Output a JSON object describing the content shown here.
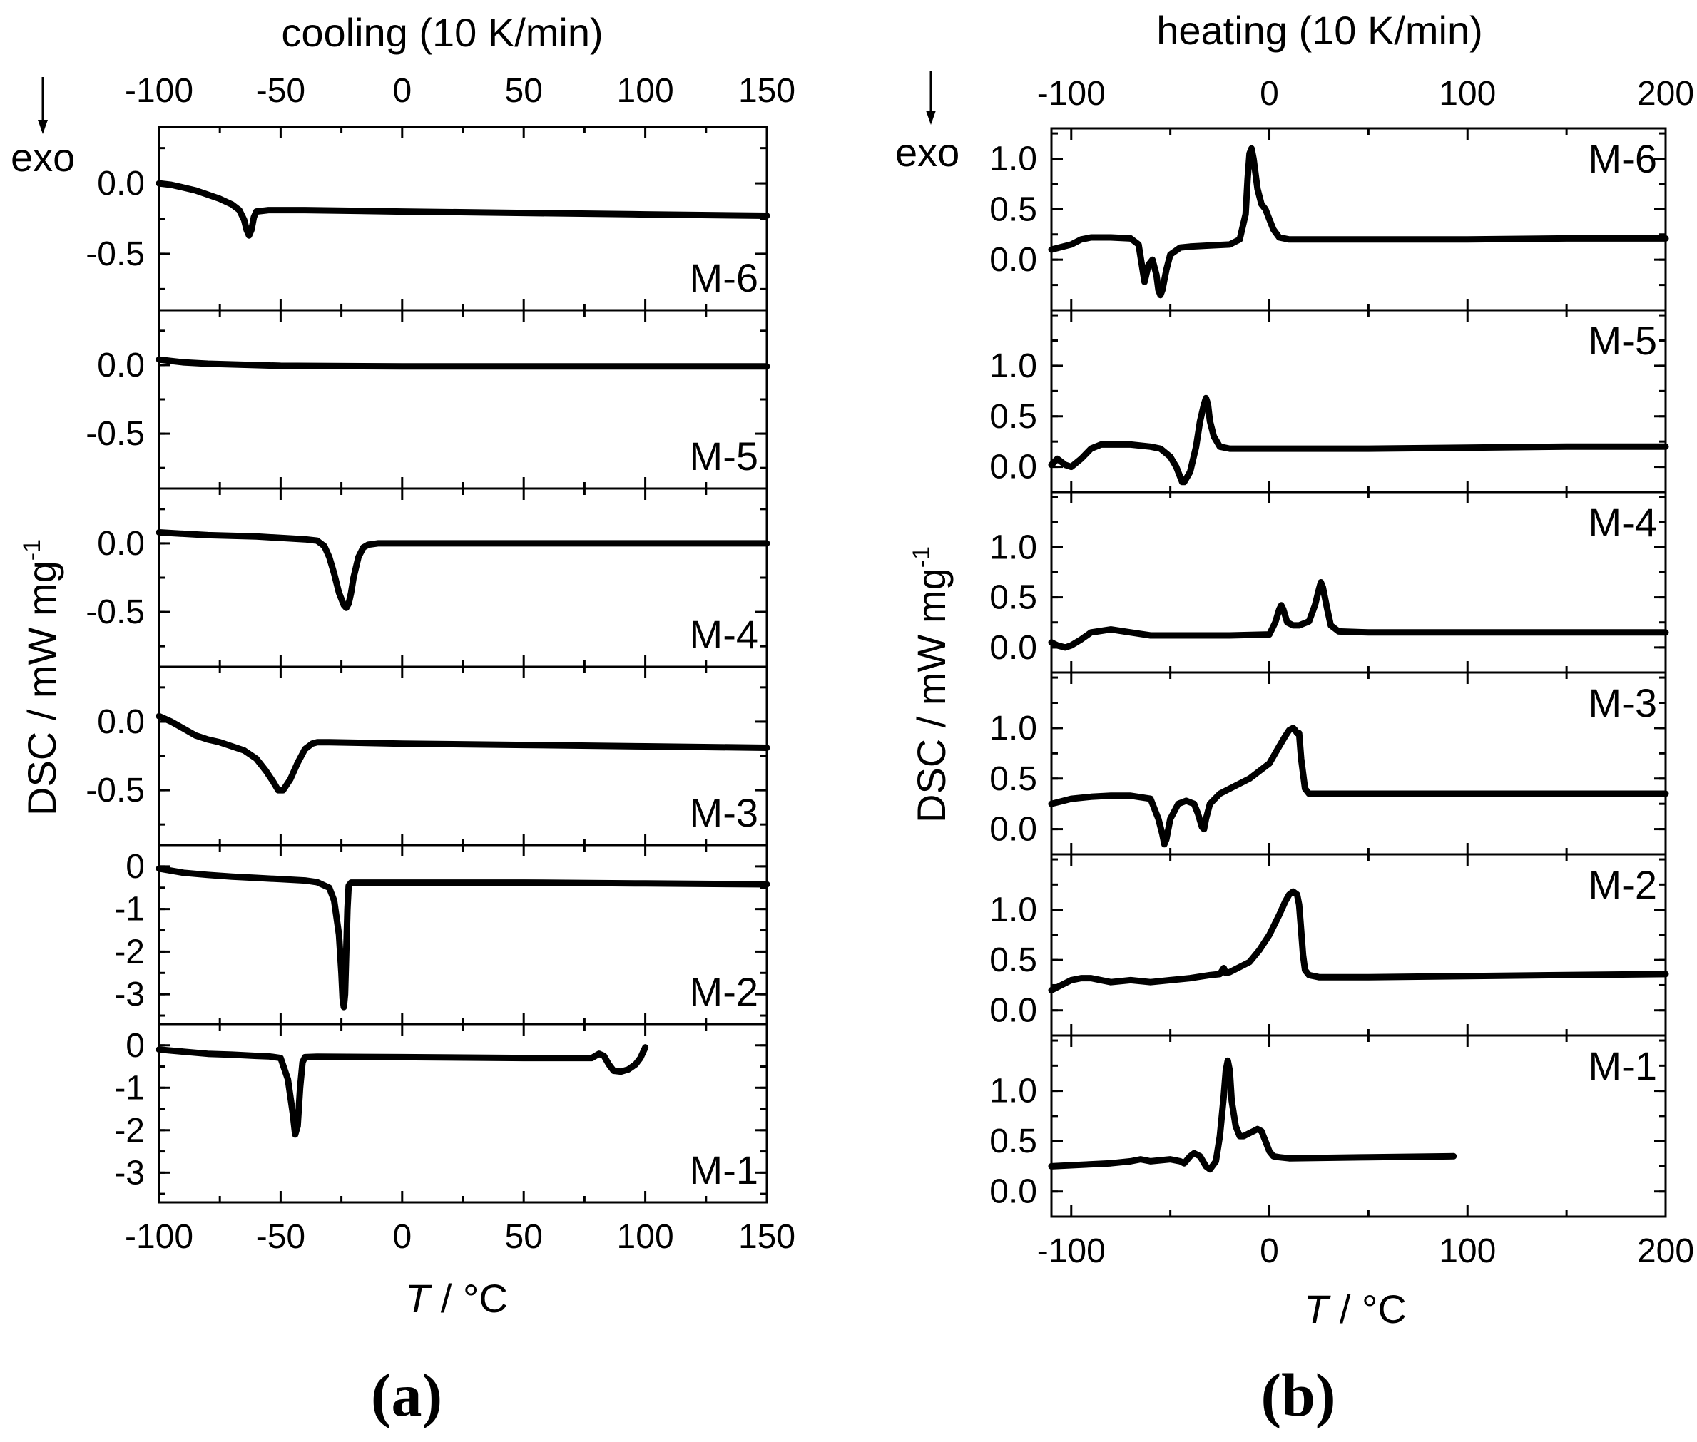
{
  "chart_data": [
    {
      "id": "a",
      "type": "line",
      "figure_label": "(a)",
      "title": "cooling (10 K/min)",
      "xlabel": "T / °C",
      "xlabel_italic": "T",
      "xlabel_rest": " / °C",
      "ylabel": "DSC / mW mg-1",
      "ylabel_main": "DSC / mW mg",
      "ylabel_sup": "-1",
      "exo_label": "exo",
      "xlim": [
        -100,
        150
      ],
      "xticks": [
        -100,
        -50,
        0,
        50,
        100,
        150
      ],
      "series": [
        {
          "name": "M-6",
          "ylim": [
            -0.9,
            0.4
          ],
          "yticks": [
            0.0,
            -0.5
          ],
          "ytick_labels": [
            "0.0",
            "-0.5"
          ],
          "x": [
            -100,
            -95,
            -90,
            -85,
            -80,
            -75,
            -70,
            -67,
            -65,
            -64,
            -63,
            -62,
            -61,
            -60,
            -55,
            -40,
            0,
            50,
            100,
            150
          ],
          "y": [
            0.0,
            -0.01,
            -0.03,
            -0.05,
            -0.08,
            -0.11,
            -0.15,
            -0.19,
            -0.26,
            -0.33,
            -0.37,
            -0.33,
            -0.24,
            -0.2,
            -0.19,
            -0.19,
            -0.2,
            -0.21,
            -0.22,
            -0.23
          ]
        },
        {
          "name": "M-5",
          "ylim": [
            -0.9,
            0.4
          ],
          "yticks": [
            0.0,
            -0.5
          ],
          "ytick_labels": [
            "0.0",
            "-0.5"
          ],
          "x": [
            -100,
            -95,
            -90,
            -80,
            -50,
            0,
            50,
            100,
            150
          ],
          "y": [
            0.04,
            0.03,
            0.02,
            0.01,
            -0.005,
            -0.01,
            -0.01,
            -0.01,
            -0.01
          ]
        },
        {
          "name": "M-4",
          "ylim": [
            -0.9,
            0.4
          ],
          "yticks": [
            0.0,
            -0.5
          ],
          "ytick_labels": [
            "0.0",
            "-0.5"
          ],
          "x": [
            -100,
            -80,
            -60,
            -40,
            -35,
            -32,
            -30,
            -28,
            -26,
            -24,
            -23,
            -22,
            -21,
            -20,
            -18,
            -16,
            -14,
            -10,
            0,
            50,
            100,
            150
          ],
          "y": [
            0.08,
            0.06,
            0.05,
            0.03,
            0.02,
            -0.02,
            -0.1,
            -0.22,
            -0.36,
            -0.45,
            -0.47,
            -0.44,
            -0.36,
            -0.25,
            -0.1,
            -0.03,
            -0.01,
            0.0,
            0.0,
            0.0,
            0.0,
            0.0
          ]
        },
        {
          "name": "M-3",
          "ylim": [
            -0.9,
            0.4
          ],
          "yticks": [
            0.0,
            -0.5
          ],
          "ytick_labels": [
            "0.0",
            "-0.5"
          ],
          "x": [
            -100,
            -95,
            -90,
            -85,
            -80,
            -75,
            -70,
            -65,
            -60,
            -56,
            -53,
            -51,
            -49,
            -46,
            -43,
            -40,
            -37,
            -35,
            -30,
            0,
            50,
            100,
            150
          ],
          "y": [
            0.04,
            0.0,
            -0.05,
            -0.1,
            -0.13,
            -0.15,
            -0.18,
            -0.21,
            -0.27,
            -0.36,
            -0.44,
            -0.5,
            -0.5,
            -0.42,
            -0.3,
            -0.2,
            -0.16,
            -0.15,
            -0.15,
            -0.16,
            -0.17,
            -0.18,
            -0.19
          ]
        },
        {
          "name": "M-2",
          "ylim": [
            -3.7,
            0.5
          ],
          "yticks": [
            0,
            -1,
            -2,
            -3
          ],
          "ytick_labels": [
            "0",
            "-1",
            "-2",
            "-3"
          ],
          "x": [
            -100,
            -90,
            -80,
            -70,
            -60,
            -50,
            -40,
            -35,
            -30,
            -28,
            -26,
            -25,
            -24.5,
            -24,
            -23.5,
            -23,
            -22.5,
            -22,
            -21,
            -20,
            0,
            50,
            100,
            150
          ],
          "y": [
            -0.05,
            -0.15,
            -0.2,
            -0.24,
            -0.27,
            -0.3,
            -0.33,
            -0.37,
            -0.5,
            -0.8,
            -1.6,
            -2.5,
            -3.1,
            -3.3,
            -3.0,
            -2.0,
            -1.0,
            -0.45,
            -0.38,
            -0.38,
            -0.38,
            -0.38,
            -0.4,
            -0.42
          ]
        },
        {
          "name": "M-1",
          "ylim": [
            -3.7,
            0.5
          ],
          "yticks": [
            0,
            -1,
            -2,
            -3
          ],
          "ytick_labels": [
            "0",
            "-1",
            "-2",
            "-3"
          ],
          "x": [
            -100,
            -90,
            -80,
            -70,
            -60,
            -55,
            -50,
            -47,
            -45,
            -44,
            -43,
            -42,
            -41,
            -40,
            -35,
            0,
            50,
            78,
            81,
            83,
            85,
            87,
            90,
            93,
            96,
            98,
            100
          ],
          "y": [
            -0.1,
            -0.15,
            -0.2,
            -0.22,
            -0.25,
            -0.26,
            -0.3,
            -0.8,
            -1.6,
            -2.1,
            -1.9,
            -1.0,
            -0.4,
            -0.28,
            -0.27,
            -0.28,
            -0.3,
            -0.3,
            -0.2,
            -0.25,
            -0.45,
            -0.6,
            -0.62,
            -0.57,
            -0.45,
            -0.3,
            -0.05
          ]
        }
      ]
    },
    {
      "id": "b",
      "type": "line",
      "figure_label": "(b)",
      "title": "heating (10 K/min)",
      "xlabel": "T / °C",
      "xlabel_italic": "T",
      "xlabel_rest": " / °C",
      "ylabel": "DSC / mW mg-1",
      "ylabel_main": "DSC / mW mg",
      "ylabel_sup": "-1",
      "exo_label": "exo",
      "xlim": [
        -110,
        200
      ],
      "xticks": [
        -100,
        0,
        100,
        200
      ],
      "series": [
        {
          "name": "M-6",
          "ylim": [
            -0.5,
            1.3
          ],
          "yticks": [
            0.0,
            0.5,
            1.0
          ],
          "ytick_labels": [
            "0.0",
            "0.5",
            "1.0"
          ],
          "x": [
            -110,
            -100,
            -95,
            -90,
            -80,
            -70,
            -66,
            -64,
            -63,
            -61,
            -59,
            -57,
            -56,
            -55,
            -54,
            -52,
            -50,
            -45,
            -40,
            -30,
            -20,
            -15,
            -12,
            -11,
            -10,
            -9,
            -8,
            -6,
            -4,
            -2,
            0,
            2,
            5,
            10,
            50,
            100,
            150,
            200
          ],
          "y": [
            0.1,
            0.15,
            0.2,
            0.22,
            0.22,
            0.21,
            0.15,
            -0.1,
            -0.22,
            -0.05,
            0.0,
            -0.15,
            -0.3,
            -0.35,
            -0.3,
            -0.1,
            0.05,
            0.12,
            0.13,
            0.14,
            0.15,
            0.2,
            0.45,
            0.8,
            1.05,
            1.1,
            1.0,
            0.7,
            0.55,
            0.5,
            0.4,
            0.3,
            0.22,
            0.2,
            0.2,
            0.2,
            0.21,
            0.21
          ]
        },
        {
          "name": "M-5",
          "ylim": [
            -0.25,
            1.55
          ],
          "yticks": [
            0.0,
            0.5,
            1.0
          ],
          "ytick_labels": [
            "0.0",
            "0.5",
            "1.0"
          ],
          "x": [
            -110,
            -107,
            -103,
            -100,
            -95,
            -90,
            -85,
            -70,
            -60,
            -55,
            -50,
            -47,
            -45,
            -44,
            -43,
            -40,
            -37,
            -35,
            -33,
            -32,
            -31,
            -30,
            -28,
            -25,
            -20,
            0,
            50,
            100,
            150,
            200
          ],
          "y": [
            0.02,
            0.08,
            0.02,
            0.0,
            0.08,
            0.18,
            0.22,
            0.22,
            0.2,
            0.18,
            0.1,
            0.0,
            -0.1,
            -0.15,
            -0.15,
            -0.05,
            0.2,
            0.45,
            0.62,
            0.68,
            0.62,
            0.45,
            0.3,
            0.2,
            0.18,
            0.18,
            0.18,
            0.19,
            0.2,
            0.2
          ]
        },
        {
          "name": "M-4",
          "ylim": [
            -0.25,
            1.55
          ],
          "yticks": [
            0.0,
            0.5,
            1.0
          ],
          "ytick_labels": [
            "0.0",
            "0.5",
            "1.0"
          ],
          "x": [
            -110,
            -107,
            -103,
            -100,
            -95,
            -90,
            -80,
            -70,
            -60,
            -20,
            0,
            3,
            5,
            6,
            7,
            9,
            12,
            15,
            20,
            23,
            25,
            26,
            27,
            29,
            31,
            35,
            50,
            100,
            150,
            200
          ],
          "y": [
            0.05,
            0.02,
            0.0,
            0.02,
            0.08,
            0.15,
            0.18,
            0.15,
            0.12,
            0.12,
            0.13,
            0.25,
            0.38,
            0.42,
            0.38,
            0.25,
            0.22,
            0.22,
            0.26,
            0.42,
            0.58,
            0.65,
            0.6,
            0.4,
            0.22,
            0.16,
            0.15,
            0.15,
            0.15,
            0.15
          ]
        },
        {
          "name": "M-3",
          "ylim": [
            -0.25,
            1.55
          ],
          "yticks": [
            0.0,
            0.5,
            1.0
          ],
          "ytick_labels": [
            "0.0",
            "0.5",
            "1.0"
          ],
          "x": [
            -110,
            -100,
            -90,
            -80,
            -70,
            -60,
            -56,
            -54,
            -53,
            -52,
            -50,
            -46,
            -42,
            -38,
            -36,
            -34,
            -33,
            -32,
            -30,
            -25,
            -20,
            -10,
            0,
            5,
            8,
            10,
            12,
            13,
            14,
            15,
            16,
            18,
            20,
            30,
            100,
            200
          ],
          "y": [
            0.25,
            0.3,
            0.32,
            0.33,
            0.33,
            0.3,
            0.1,
            -0.05,
            -0.15,
            -0.1,
            0.1,
            0.25,
            0.28,
            0.25,
            0.15,
            0.02,
            0.0,
            0.1,
            0.25,
            0.35,
            0.4,
            0.5,
            0.65,
            0.82,
            0.92,
            0.98,
            1.0,
            0.98,
            0.95,
            0.95,
            0.7,
            0.4,
            0.35,
            0.35,
            0.35,
            0.35
          ]
        },
        {
          "name": "M-2",
          "ylim": [
            -0.25,
            1.55
          ],
          "yticks": [
            0.0,
            0.5,
            1.0
          ],
          "ytick_labels": [
            "0.0",
            "0.5",
            "1.0"
          ],
          "x": [
            -110,
            -105,
            -100,
            -95,
            -90,
            -80,
            -70,
            -60,
            -50,
            -40,
            -30,
            -25,
            -23,
            -22,
            -20,
            -10,
            -5,
            0,
            5,
            8,
            10,
            12,
            14,
            15,
            16,
            17,
            18,
            20,
            25,
            50,
            100,
            150,
            200
          ],
          "y": [
            0.2,
            0.25,
            0.3,
            0.32,
            0.32,
            0.28,
            0.3,
            0.28,
            0.3,
            0.32,
            0.35,
            0.36,
            0.42,
            0.37,
            0.38,
            0.48,
            0.6,
            0.75,
            0.95,
            1.08,
            1.15,
            1.18,
            1.15,
            1.05,
            0.8,
            0.55,
            0.4,
            0.35,
            0.33,
            0.33,
            0.34,
            0.35,
            0.36
          ]
        },
        {
          "name": "M-1",
          "ylim": [
            -0.25,
            1.55
          ],
          "yticks": [
            0.0,
            0.5,
            1.0
          ],
          "ytick_labels": [
            "0.0",
            "0.5",
            "1.0"
          ],
          "x": [
            -110,
            -100,
            -90,
            -80,
            -70,
            -65,
            -60,
            -50,
            -45,
            -43,
            -40,
            -38,
            -35,
            -32,
            -30,
            -27,
            -25,
            -23,
            -22,
            -21,
            -20,
            -19,
            -17,
            -15,
            -13,
            -10,
            -8,
            -6,
            -4,
            -2,
            0,
            2,
            5,
            10,
            50,
            93
          ],
          "y": [
            0.25,
            0.26,
            0.27,
            0.28,
            0.3,
            0.32,
            0.3,
            0.32,
            0.3,
            0.28,
            0.35,
            0.38,
            0.35,
            0.25,
            0.22,
            0.3,
            0.55,
            0.95,
            1.2,
            1.3,
            1.2,
            0.9,
            0.65,
            0.55,
            0.55,
            0.58,
            0.6,
            0.62,
            0.6,
            0.5,
            0.4,
            0.35,
            0.34,
            0.33,
            0.34,
            0.35
          ]
        }
      ]
    }
  ]
}
